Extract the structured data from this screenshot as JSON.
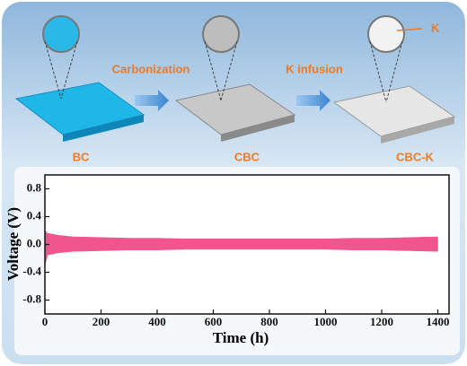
{
  "diagram": {
    "steps": [
      "BC",
      "CBC",
      "CBC-K"
    ],
    "arrows": [
      "Carbonization",
      "K infusion"
    ],
    "callout": "K"
  },
  "chart_data": {
    "type": "band",
    "x_label": "Time (h)",
    "y_label": "Voltage (V)",
    "x": [
      0,
      10,
      50,
      100,
      200,
      300,
      400,
      500,
      600,
      700,
      800,
      900,
      1000,
      1100,
      1200,
      1300,
      1400
    ],
    "series": [
      {
        "color": "#f0568c",
        "values": [
          0.2,
          0.16,
          0.13,
          0.11,
          0.1,
          0.09,
          0.09,
          0.08,
          0.08,
          0.08,
          0.08,
          0.08,
          0.08,
          0.09,
          0.09,
          0.1,
          0.11
        ]
      },
      {
        "color": "#f0568c",
        "values": [
          -0.3,
          -0.15,
          -0.12,
          -0.1,
          -0.09,
          -0.08,
          -0.08,
          -0.07,
          -0.07,
          -0.07,
          -0.07,
          -0.07,
          -0.07,
          -0.08,
          -0.08,
          -0.09,
          -0.1
        ]
      }
    ],
    "xlim": [
      0,
      1440
    ],
    "ylim": [
      -1.0,
      1.0
    ],
    "xticks": [
      0,
      200,
      400,
      600,
      800,
      1000,
      1200,
      1400
    ],
    "yticks": [
      0.8,
      0.4,
      {
        "value": 0,
        "label": "0.0"
      },
      -0.4,
      -0.8
    ]
  }
}
